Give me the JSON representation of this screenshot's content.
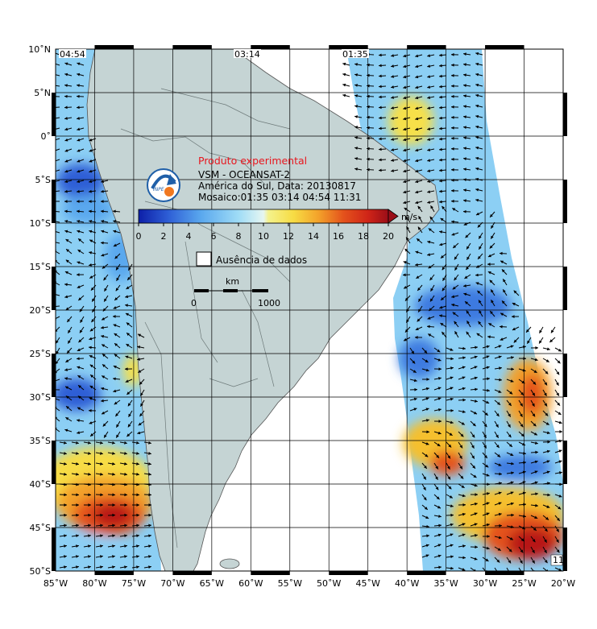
{
  "map": {
    "title": "Produto experimental",
    "product": "VSM - OCEANSAT-2",
    "region_date": "América do Sul, Data: 20130817",
    "mosaic": "Mosaico:01:35 03:14 04:54 11:31",
    "no_data_label": "Ausência de dados",
    "scale_unit": "km",
    "scale_start": "0",
    "scale_end": "1000",
    "pass_times": [
      "04:54",
      "03:14",
      "01:35"
    ],
    "pass_time_corner": "11",
    "lon_labels": [
      "85˚W",
      "80˚W",
      "75˚W",
      "70˚W",
      "65˚W",
      "60˚W",
      "55˚W",
      "50˚W",
      "45˚W",
      "40˚W",
      "35˚W",
      "30˚W",
      "25˚W",
      "20˚W"
    ],
    "lat_labels": [
      "10˚N",
      "5˚N",
      "0˚",
      "5˚S",
      "10˚S",
      "15˚S",
      "20˚S",
      "25˚S",
      "30˚S",
      "35˚S",
      "40˚S",
      "45˚S",
      "50˚S"
    ],
    "colorbar": {
      "unit": "m/s",
      "ticks": [
        "0",
        "2",
        "4",
        "6",
        "8",
        "10",
        "12",
        "14",
        "16",
        "18",
        "20"
      ],
      "colors": [
        "#0d1fa8",
        "#1f48c8",
        "#3d7ae0",
        "#5aa8ee",
        "#8ccff4",
        "#b6e6f8",
        "#d8f2f4",
        "#f4f28c",
        "#f7e04a",
        "#f5c02e",
        "#f3a22a",
        "#ee7a22",
        "#e44e1c",
        "#cf2418",
        "#a8121a"
      ]
    },
    "colors": {
      "land": "#c5d4d4",
      "ocean": "#ffffff",
      "grid": "#000000",
      "arrow": "#000000",
      "title_red": "#e8161e"
    },
    "logo_text": "INPE"
  }
}
